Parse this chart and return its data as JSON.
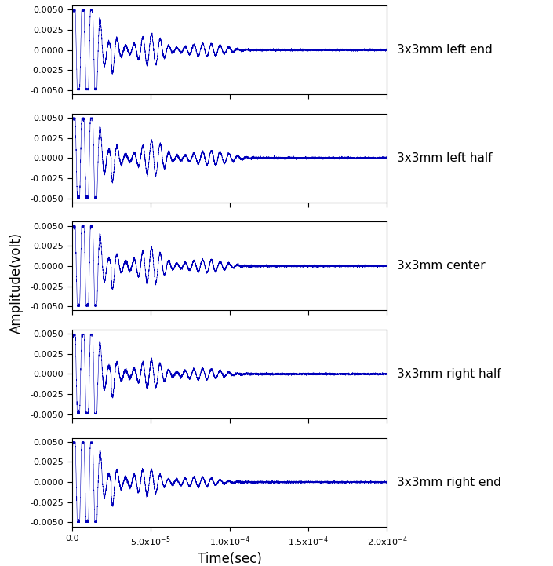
{
  "labels": [
    "3x3mm left end",
    "3x3mm left half",
    "3x3mm center",
    "3x3mm right half",
    "3x3mm right end"
  ],
  "xlim": [
    0,
    0.0002
  ],
  "ylim": [
    -0.0055,
    0.0055
  ],
  "yticks": [
    -0.005,
    -0.0025,
    0.0,
    0.0025,
    0.005
  ],
  "xticks": [
    0.0,
    5e-05,
    0.0001,
    0.00015,
    0.0002
  ],
  "xtick_labels": [
    "0.0",
    "5.0x10$^{-5}$",
    "1.0x10$^{-4}$",
    "1.5x10$^{-4}$",
    "2.0x10$^{-4}$"
  ],
  "ytick_labels": [
    "-0.0050",
    "-0.0025",
    "0.0000",
    "0.0025",
    "0.0050"
  ],
  "line_color": "#0000bb",
  "xlabel": "Time(sec)",
  "ylabel": "Amplitude(volt)",
  "fig_width": 7.05,
  "fig_height": 7.21,
  "label_fontsize": 11,
  "tick_fontsize": 8,
  "axis_label_fontsize": 12
}
